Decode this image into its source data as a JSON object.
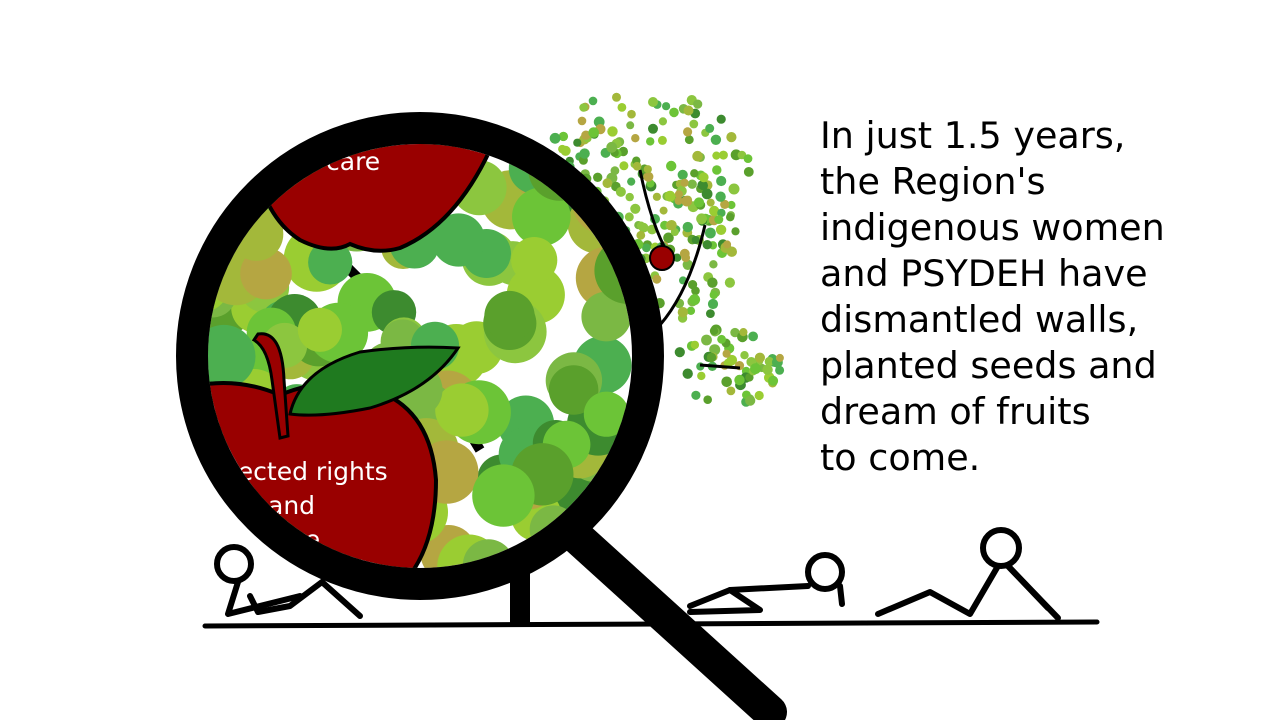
{
  "caption": {
    "lines": [
      "In just 1.5 years,",
      "the Region's",
      "indigenous women",
      "and PSYDEH have",
      "dismantled walls,",
      "planted seeds and",
      "dream of fruits",
      "to come."
    ]
  },
  "magnifier": {
    "upper_apple_label": "care",
    "lower_apple_label_lines": [
      "tected rights",
      "and",
      "ice"
    ]
  },
  "colors": {
    "apple_red": "#990000",
    "leaf_green": "#1f7a1f",
    "foliage": [
      "#6cc437",
      "#8cc63f",
      "#5aa02c",
      "#9acd32",
      "#7bb844",
      "#a3b83a",
      "#4caf50",
      "#b5a642",
      "#3d8b2f"
    ],
    "outline": "#000000"
  },
  "figures_count": 3
}
